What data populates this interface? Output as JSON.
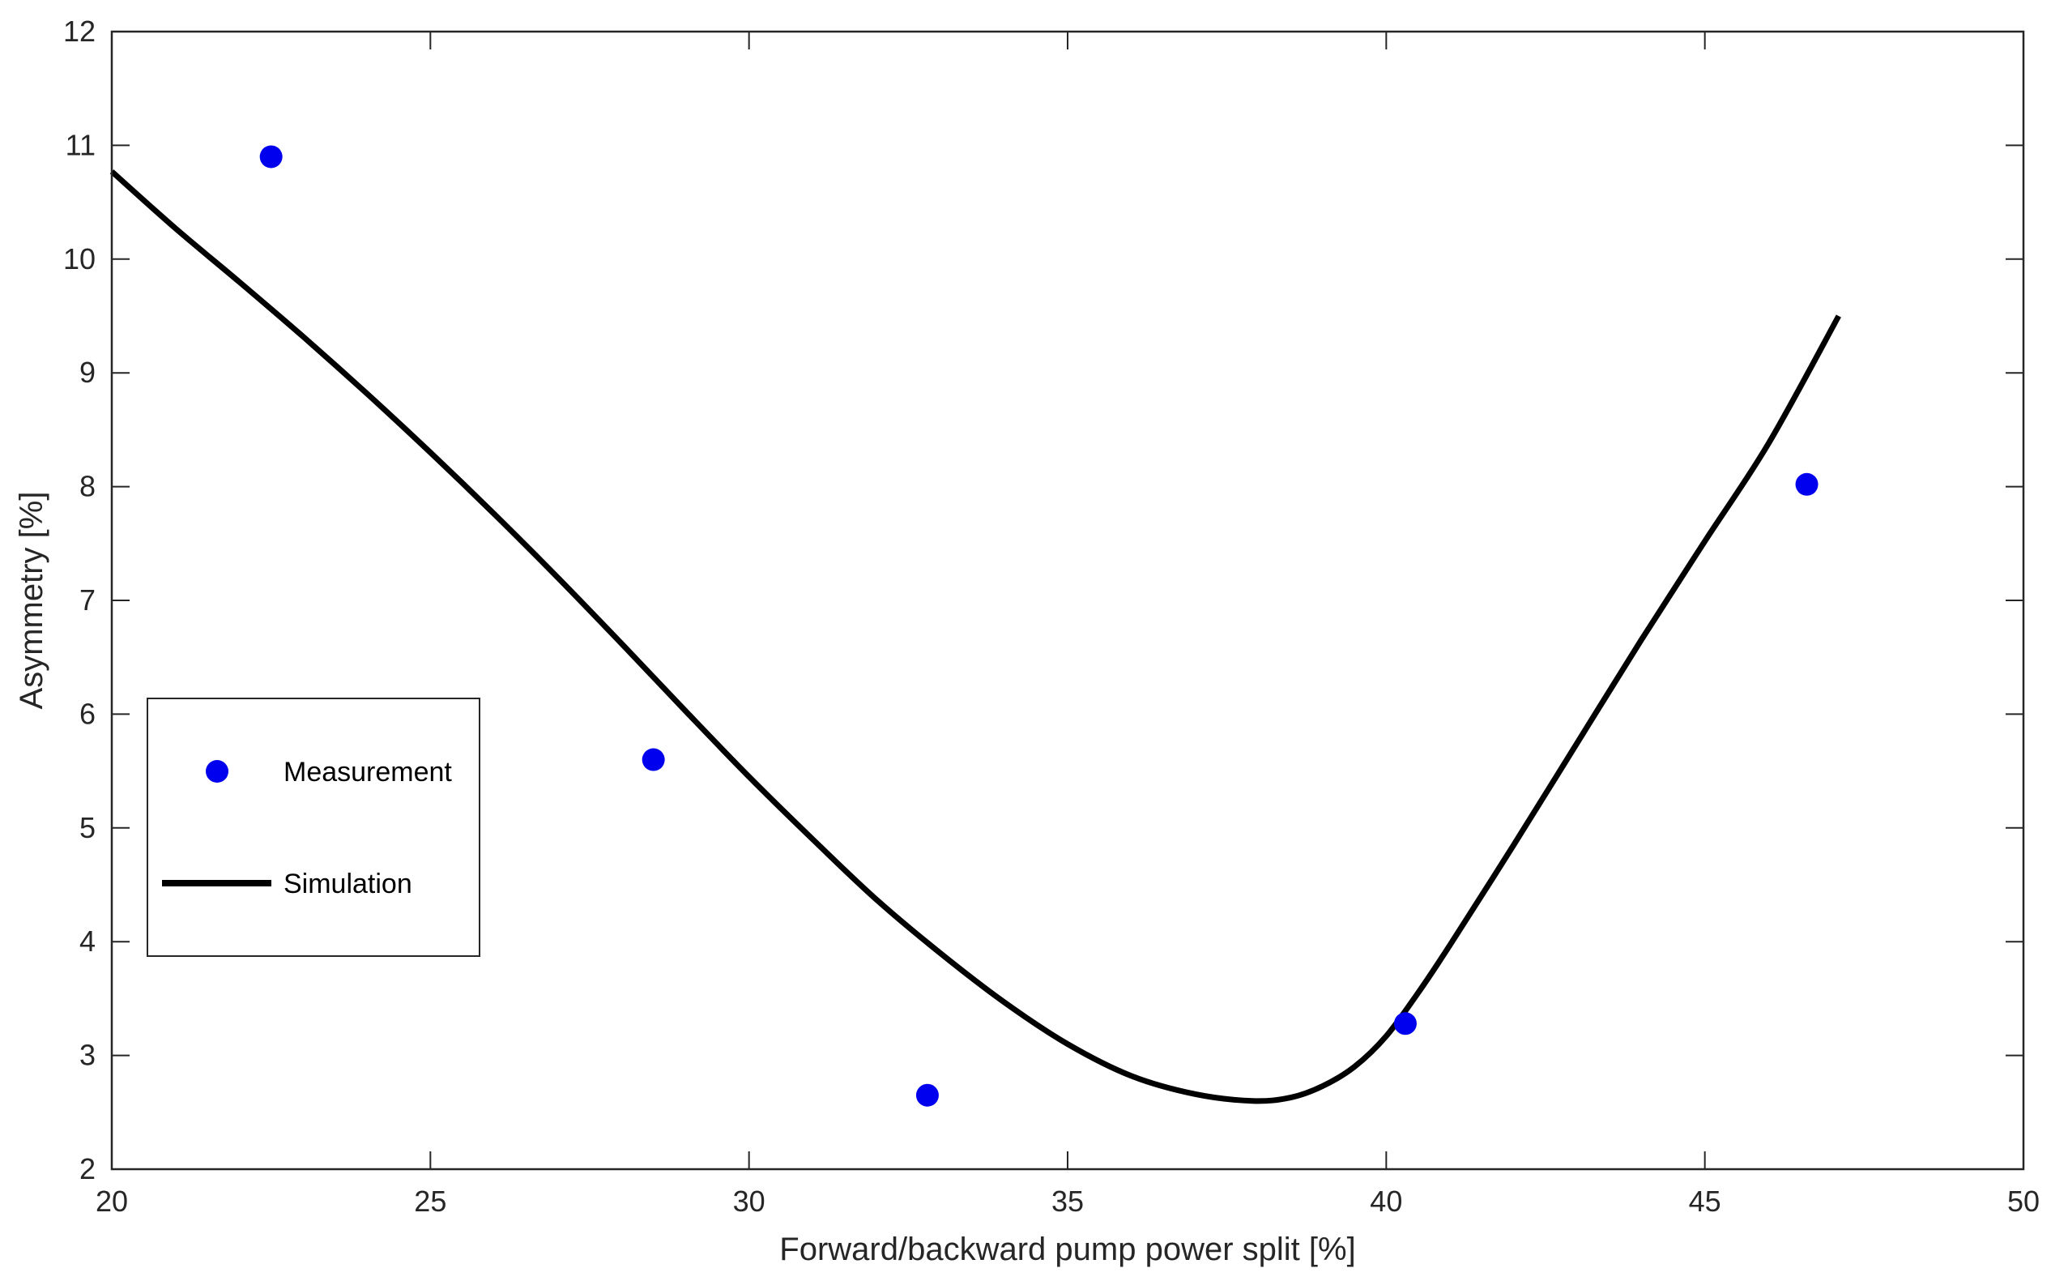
{
  "chart_data": {
    "type": "scatter",
    "title": "",
    "xlabel": "Forward/backward pump power split [%]",
    "ylabel": "Asymmetry [%]",
    "xlim": [
      20,
      50
    ],
    "ylim": [
      2,
      12
    ],
    "xticks": [
      20,
      25,
      30,
      35,
      40,
      45,
      50
    ],
    "yticks": [
      2,
      3,
      4,
      5,
      6,
      7,
      8,
      9,
      10,
      11,
      12
    ],
    "grid": false,
    "legend_position": "center-left",
    "series": [
      {
        "name": "Measurement",
        "kind": "scatter",
        "color": "#0000ee",
        "x": [
          22.5,
          28.5,
          32.8,
          40.3,
          46.6
        ],
        "y": [
          10.9,
          5.6,
          2.65,
          3.28,
          8.02
        ]
      },
      {
        "name": "Simulation",
        "kind": "line",
        "color": "#000000",
        "x": [
          20,
          21,
          22,
          23,
          24,
          25,
          26,
          27,
          28,
          29,
          30,
          31,
          32,
          33,
          34,
          35,
          36,
          37,
          37.9,
          38.5,
          39,
          39.5,
          40,
          40.5,
          41,
          42,
          43,
          44,
          45,
          46,
          47.1
        ],
        "y": [
          10.77,
          10.27,
          9.8,
          9.32,
          8.82,
          8.3,
          7.76,
          7.2,
          6.62,
          6.03,
          5.45,
          4.9,
          4.37,
          3.9,
          3.47,
          3.1,
          2.82,
          2.66,
          2.6,
          2.63,
          2.73,
          2.9,
          3.17,
          3.55,
          3.97,
          4.85,
          5.75,
          6.65,
          7.52,
          8.38,
          9.5
        ]
      }
    ]
  }
}
